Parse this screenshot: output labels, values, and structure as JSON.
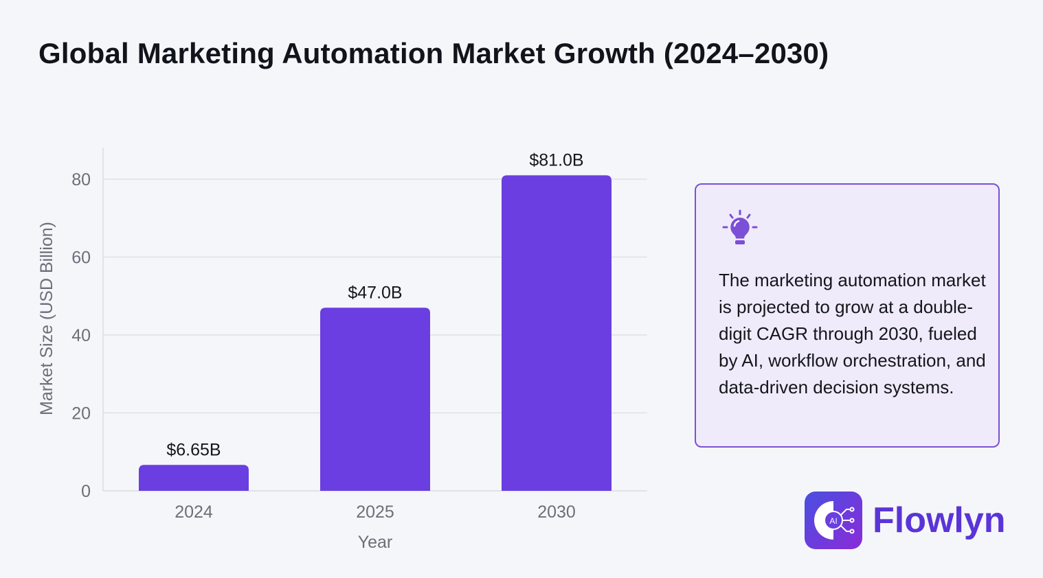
{
  "title": "Global Marketing Automation Market Growth (2024–2030)",
  "chart_data": {
    "type": "bar",
    "categories": [
      "2024",
      "2025",
      "2030"
    ],
    "values": [
      6.65,
      47.0,
      81.0
    ],
    "data_labels": [
      "$6.65B",
      "$47.0B",
      "$81.0B"
    ],
    "xlabel": "Year",
    "ylabel": "Market Size (USD Billion)",
    "ylim": [
      0,
      88
    ],
    "yticks": [
      0,
      20,
      40,
      60,
      80
    ],
    "grid": true,
    "bar_color": "#6a3ee0"
  },
  "insight_card": {
    "icon": "lightbulb-icon",
    "text": "The marketing automation market is projected to grow at a double-digit CAGR through 2030, fueled by AI, workflow orchestration, and data-driven decision systems."
  },
  "brand": {
    "name": "Flowlyn",
    "logo_text": "AI",
    "color": "#5a34d8"
  }
}
